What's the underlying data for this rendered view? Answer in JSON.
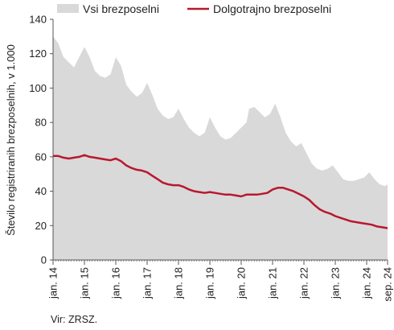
{
  "chart_data": {
    "type": "area",
    "ylabel": "Število registriranih brezposelnih, v 1.000",
    "source": "Vir: ZRSZ.",
    "ylim": [
      0,
      140
    ],
    "y_ticks": [
      0,
      20,
      40,
      60,
      80,
      100,
      120,
      140
    ],
    "grid": false,
    "legend_position": "top",
    "x_ticks": [
      "jan. 14",
      "jan. 15",
      "jan. 16",
      "jan. 17",
      "jan. 18",
      "jan. 19",
      "jan. 20",
      "jan. 21",
      "jan. 22",
      "jan. 23",
      "jan. 24",
      "sep. 24"
    ],
    "x_start": "2014-01",
    "x_end": "2024-09",
    "colors": {
      "area": "#d9d9d9",
      "line": "#b8182f",
      "axis": "#555555"
    },
    "series": [
      {
        "name": "Vsi brezposelni",
        "type": "area",
        "x": [
          "2014-01",
          "2014-03",
          "2014-05",
          "2014-07",
          "2014-09",
          "2014-11",
          "2015-01",
          "2015-03",
          "2015-05",
          "2015-07",
          "2015-09",
          "2015-11",
          "2016-01",
          "2016-03",
          "2016-05",
          "2016-07",
          "2016-09",
          "2016-11",
          "2017-01",
          "2017-03",
          "2017-05",
          "2017-07",
          "2017-09",
          "2017-11",
          "2018-01",
          "2018-03",
          "2018-05",
          "2018-07",
          "2018-09",
          "2018-11",
          "2019-01",
          "2019-03",
          "2019-05",
          "2019-07",
          "2019-09",
          "2019-11",
          "2020-01",
          "2020-03",
          "2020-04",
          "2020-06",
          "2020-08",
          "2020-10",
          "2020-12",
          "2021-02",
          "2021-04",
          "2021-06",
          "2021-08",
          "2021-10",
          "2021-12",
          "2022-02",
          "2022-04",
          "2022-06",
          "2022-08",
          "2022-10",
          "2022-12",
          "2023-02",
          "2023-04",
          "2023-06",
          "2023-08",
          "2023-10",
          "2023-12",
          "2024-02",
          "2024-04",
          "2024-06",
          "2024-08",
          "2024-09"
        ],
        "values": [
          130,
          126,
          118,
          115,
          112,
          118,
          124,
          118,
          110,
          107,
          106,
          108,
          118,
          113,
          102,
          98,
          95,
          97,
          103,
          96,
          88,
          84,
          82,
          83,
          88,
          82,
          77,
          74,
          72,
          74,
          83,
          77,
          72,
          70,
          71,
          74,
          77,
          80,
          88,
          89,
          86,
          83,
          85,
          91,
          83,
          74,
          69,
          66,
          68,
          62,
          56,
          53,
          52,
          53,
          55,
          51,
          47,
          46,
          46,
          47,
          48,
          51,
          47,
          44,
          43,
          44
        ]
      },
      {
        "name": "Dolgotrajno brezposelni",
        "type": "line",
        "x": [
          "2014-01",
          "2014-03",
          "2014-05",
          "2014-07",
          "2014-09",
          "2014-11",
          "2015-01",
          "2015-03",
          "2015-05",
          "2015-07",
          "2015-09",
          "2015-11",
          "2016-01",
          "2016-03",
          "2016-05",
          "2016-07",
          "2016-09",
          "2016-11",
          "2017-01",
          "2017-03",
          "2017-05",
          "2017-07",
          "2017-09",
          "2017-11",
          "2018-01",
          "2018-03",
          "2018-05",
          "2018-07",
          "2018-09",
          "2018-11",
          "2019-01",
          "2019-03",
          "2019-05",
          "2019-07",
          "2019-09",
          "2019-11",
          "2020-01",
          "2020-03",
          "2020-05",
          "2020-07",
          "2020-09",
          "2020-11",
          "2021-01",
          "2021-03",
          "2021-05",
          "2021-07",
          "2021-09",
          "2021-11",
          "2022-01",
          "2022-03",
          "2022-05",
          "2022-07",
          "2022-09",
          "2022-11",
          "2023-01",
          "2023-03",
          "2023-05",
          "2023-07",
          "2023-09",
          "2023-11",
          "2024-01",
          "2024-03",
          "2024-05",
          "2024-07",
          "2024-09"
        ],
        "values": [
          60.5,
          60.5,
          59.5,
          59,
          59.5,
          60,
          61,
          60,
          59.5,
          59,
          58.5,
          58,
          59,
          57.5,
          55,
          53.5,
          52.5,
          52,
          51,
          49,
          47,
          45,
          44,
          43.5,
          43.5,
          42.5,
          41,
          40,
          39.5,
          39,
          39.5,
          39,
          38.5,
          38,
          38,
          37.5,
          37,
          38,
          38,
          38,
          38.5,
          39,
          41,
          42,
          42,
          41,
          40,
          38.5,
          37,
          35,
          32,
          29.5,
          28,
          27,
          25.5,
          24.5,
          23.5,
          22.5,
          22,
          21.5,
          21,
          20.5,
          19.5,
          19,
          18.5
        ]
      }
    ]
  }
}
